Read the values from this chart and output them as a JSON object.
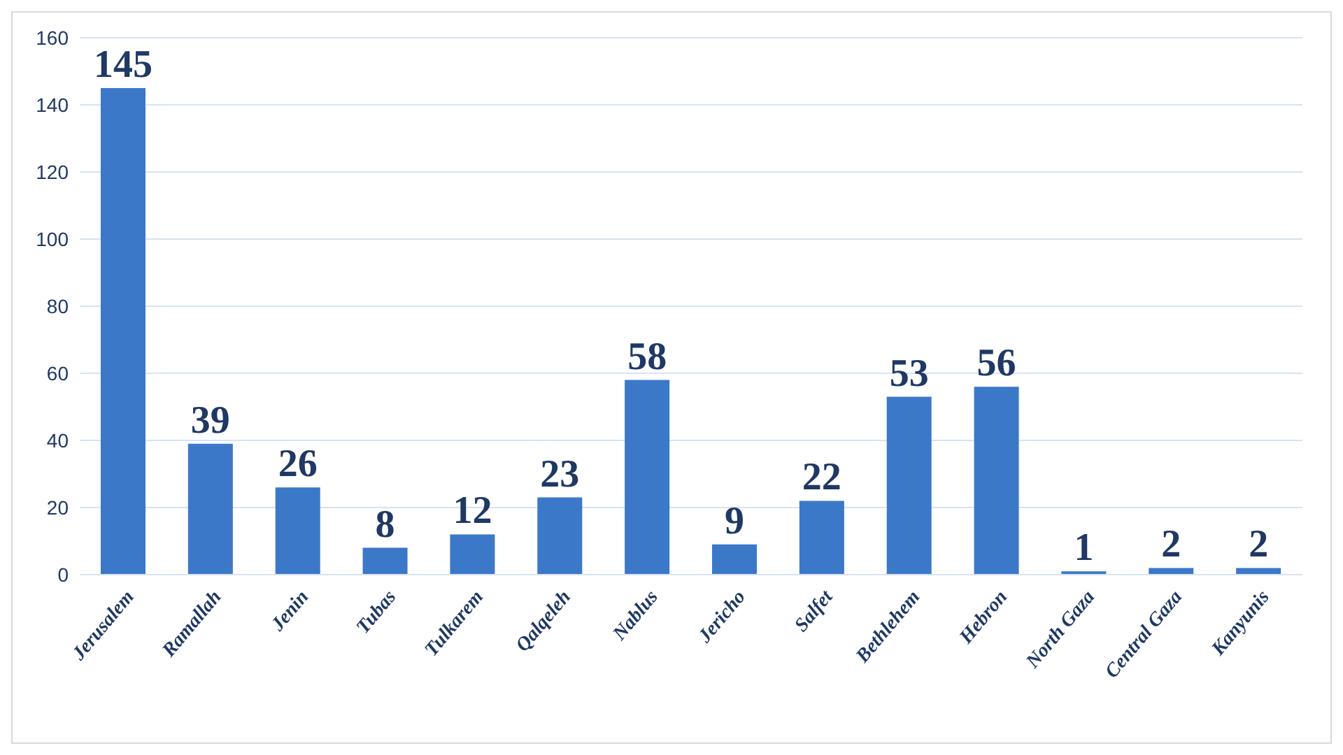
{
  "chart_data": {
    "type": "bar",
    "categories": [
      "Jerusalem",
      "Ramallah",
      "Jenin",
      "Tubas",
      "Tulkarem",
      "Qalqeleh",
      "Nablus",
      "Jericho",
      "Salfet",
      "Bethlehem",
      "Hebron",
      "North Gaza",
      "Central Gaza",
      "Kanyunis"
    ],
    "values": [
      145,
      39,
      26,
      8,
      12,
      23,
      58,
      9,
      22,
      53,
      56,
      1,
      2,
      2
    ],
    "color": "#3b78c8",
    "ylim": [
      0,
      160
    ],
    "yticks": [
      0,
      20,
      40,
      60,
      80,
      100,
      120,
      140,
      160
    ],
    "grid": "y",
    "data_labels": true
  }
}
